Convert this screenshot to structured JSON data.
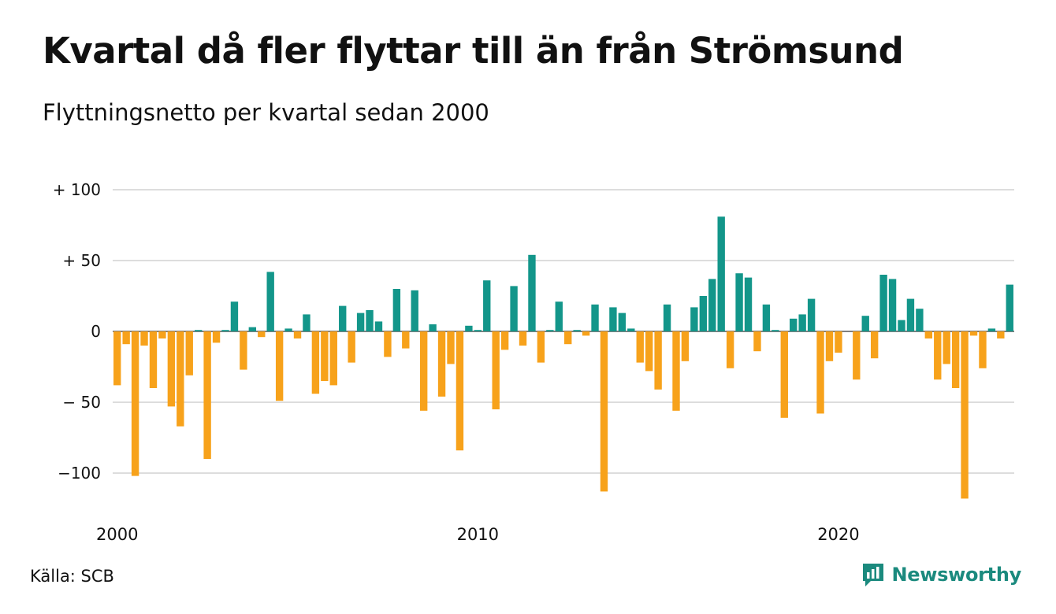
{
  "title": "Kvartal då fler flyttar till än från Strömsund",
  "subtitle": "Flyttningsnetto per kvartal sedan 2000",
  "source": "Källa: SCB",
  "brand": {
    "name": "Newsworthy",
    "icon": "newsworthy-logo-icon"
  },
  "colors": {
    "positive": "#13968a",
    "negative": "#f7a21b",
    "grid": "#dddddd",
    "text": "#111111",
    "brand": "#1b8a7e"
  },
  "chart_data": {
    "type": "bar",
    "title": "Kvartal då fler flyttar till än från Strömsund",
    "subtitle": "Flyttningsnetto per kvartal sedan 2000",
    "start": "2000 Q1",
    "frequency": "quarterly",
    "ylim": [
      -120,
      100
    ],
    "yticks": [
      100,
      50,
      0,
      -50,
      -100
    ],
    "ytick_labels": [
      "+ 100",
      "+  50",
      "0",
      "− 50",
      "−100"
    ],
    "xtick_labels": [
      "2000",
      "2010",
      "2020"
    ],
    "grid": true,
    "values": [
      -38,
      -9,
      -102,
      -10,
      -40,
      -5,
      -53,
      -67,
      -31,
      1,
      -90,
      -8,
      1,
      21,
      -27,
      3,
      -4,
      42,
      -49,
      2,
      -5,
      12,
      -44,
      -35,
      -38,
      18,
      -22,
      13,
      15,
      7,
      -18,
      30,
      -12,
      29,
      -56,
      5,
      -46,
      -23,
      -84,
      4,
      1,
      36,
      -55,
      -13,
      32,
      -10,
      54,
      -22,
      1,
      21,
      -9,
      1,
      -3,
      19,
      -113,
      17,
      13,
      2,
      -22,
      -28,
      -41,
      19,
      -56,
      -21,
      17,
      25,
      37,
      81,
      -26,
      41,
      38,
      -14,
      19,
      1,
      -61,
      9,
      12,
      23,
      -58,
      -21,
      -15,
      0,
      -34,
      11,
      -19,
      40,
      37,
      8,
      23,
      16,
      -5,
      -34,
      -23,
      -40,
      -118,
      -3,
      -26,
      2,
      -5,
      33
    ]
  }
}
